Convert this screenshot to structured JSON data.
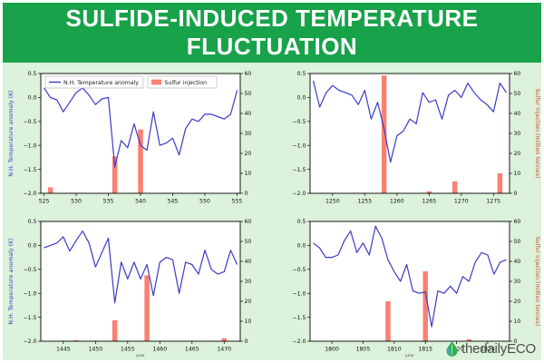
{
  "header": {
    "title": "SULFIDE-INDUCED TEMPERATURE FLUCTUATION"
  },
  "footer": {
    "brand": "thedailyECO"
  },
  "colors": {
    "header_bg": "#18a24a",
    "page_bg": "#ddf2da",
    "panel_bg": "#ffffff",
    "line_blue": "#3a3ac8",
    "bar_salmon": "#fa8072",
    "left_label_blue": "#3a3ac8",
    "right_label_red": "#cc4733",
    "tick_color": "#111111",
    "year_label_gray": "#555555"
  },
  "legend": {
    "temperature": "N.H. Temperature anomaly",
    "sulfur": "Sulfur injection"
  },
  "axes": {
    "left_label": "N.H. Temperature anomaly (K)",
    "right_label": "Sulfur injection (million tonnes)",
    "x_axis_label": "year",
    "left_range": [
      -2.0,
      0.5
    ],
    "left_ticks": [
      "0.5",
      "0.0",
      "−0.5",
      "−1.0",
      "−1.5",
      "−2.0"
    ],
    "left_tick_values": [
      0.5,
      0.0,
      -0.5,
      -1.0,
      -1.5,
      -2.0
    ],
    "right_range": [
      0,
      60
    ],
    "right_ticks": [
      0,
      10,
      20,
      30,
      40,
      50,
      60
    ]
  },
  "chart_data": [
    {
      "name": "top-left",
      "type": "line+bar",
      "show_legend": true,
      "show_left_axis_label": true,
      "show_right_axis_label": false,
      "show_year_label": false,
      "x_range": [
        525,
        555
      ],
      "x_ticks": [
        525,
        530,
        535,
        540,
        545,
        550,
        555
      ],
      "temperature_anomaly_K": {
        "x_start": 525,
        "values": [
          0.2,
          0.0,
          -0.05,
          -0.3,
          -0.1,
          0.1,
          0.2,
          0.05,
          -0.15,
          -0.03,
          0.0,
          -1.45,
          -0.9,
          -1.05,
          -0.55,
          -1.0,
          -1.1,
          -0.3,
          -1.0,
          -0.95,
          -0.85,
          -1.2,
          -0.65,
          -0.45,
          -0.5,
          -0.35,
          -0.35,
          -0.4,
          -0.45,
          -0.35,
          0.15
        ]
      },
      "sulfur_injection_Mt": [
        {
          "x": 526,
          "v": 3
        },
        {
          "x": 536,
          "v": 18.5
        },
        {
          "x": 540,
          "v": 32
        }
      ]
    },
    {
      "name": "top-right",
      "type": "line+bar",
      "show_legend": false,
      "show_left_axis_label": false,
      "show_right_axis_label": true,
      "show_year_label": false,
      "x_range": [
        1247,
        1277
      ],
      "x_ticks": [
        1250,
        1255,
        1260,
        1265,
        1270,
        1275
      ],
      "temperature_anomaly_K": {
        "x_start": 1247,
        "values": [
          0.35,
          -0.2,
          0.1,
          0.25,
          0.15,
          0.1,
          0.05,
          -0.15,
          0.15,
          -0.45,
          -0.1,
          -0.65,
          -1.35,
          -0.8,
          -0.7,
          -0.45,
          -0.55,
          0.1,
          -0.1,
          -0.05,
          -0.45,
          0.05,
          0.15,
          0.0,
          0.3,
          0.1,
          -0.05,
          -0.15,
          -0.3,
          0.3,
          0.1
        ]
      },
      "sulfur_injection_Mt": [
        {
          "x": 1258,
          "v": 59
        },
        {
          "x": 1265,
          "v": 1
        },
        {
          "x": 1269,
          "v": 6
        },
        {
          "x": 1276,
          "v": 10
        }
      ]
    },
    {
      "name": "bottom-left",
      "type": "line+bar",
      "show_legend": false,
      "show_left_axis_label": true,
      "show_right_axis_label": false,
      "show_year_label": true,
      "x_range": [
        1442,
        1472
      ],
      "x_ticks": [
        1445,
        1450,
        1455,
        1460,
        1465,
        1470
      ],
      "temperature_anomaly_K": {
        "x_start": 1442,
        "values": [
          -0.05,
          0.0,
          0.05,
          0.18,
          -0.12,
          0.1,
          0.3,
          0.05,
          -0.45,
          -0.15,
          0.15,
          -1.2,
          -0.35,
          -0.7,
          -0.35,
          -0.7,
          -0.4,
          -1.05,
          -0.35,
          -0.25,
          -0.3,
          -1.0,
          -0.35,
          -0.4,
          -0.6,
          -0.1,
          -0.5,
          -0.6,
          -0.55,
          -0.1,
          -0.4
        ]
      },
      "sulfur_injection_Mt": [
        {
          "x": 1447,
          "v": 0.5
        },
        {
          "x": 1453,
          "v": 10.5
        },
        {
          "x": 1458,
          "v": 33
        },
        {
          "x": 1470,
          "v": 1.5
        }
      ]
    },
    {
      "name": "bottom-right",
      "type": "line+bar",
      "show_legend": false,
      "show_left_axis_label": false,
      "show_right_axis_label": true,
      "show_year_label": true,
      "x_range": [
        1797,
        1828
      ],
      "x_ticks": [
        1800,
        1805,
        1810,
        1815,
        1820,
        1825
      ],
      "temperature_anomaly_K": {
        "x_start": 1797,
        "values": [
          0.05,
          -0.05,
          -0.25,
          -0.25,
          -0.2,
          0.1,
          0.3,
          -0.15,
          0.05,
          -0.2,
          0.4,
          0.15,
          -0.3,
          -0.55,
          -0.75,
          -0.4,
          -0.95,
          -1.0,
          -0.97,
          -1.7,
          -0.95,
          -1.0,
          -0.85,
          -1.0,
          -0.65,
          -0.75,
          -0.35,
          -0.15,
          -0.2,
          -0.6,
          -0.35,
          -0.3
        ]
      },
      "sulfur_injection_Mt": [
        {
          "x": 1809,
          "v": 20
        },
        {
          "x": 1815,
          "v": 35
        },
        {
          "x": 1822,
          "v": 1
        }
      ]
    }
  ]
}
